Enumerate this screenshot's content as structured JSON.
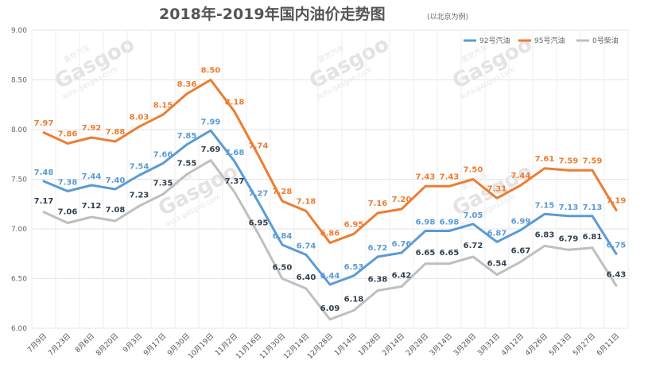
{
  "chart_data": {
    "type": "line",
    "title": "2018年-2019年国内油价走势图",
    "subtitle": "(以北京为例)",
    "categories": [
      "7月9日",
      "7月23日",
      "8月6日",
      "8月20日",
      "9月3日",
      "9月17日",
      "9月30日",
      "10月19日",
      "11月2日",
      "11月16日",
      "11月30日",
      "12月14日",
      "12月28日",
      "1月14日",
      "1月28日",
      "2月14日",
      "2月28日",
      "3月14日",
      "3月28日",
      "3月31日",
      "4月12日",
      "4月26日",
      "5月13日",
      "5月27日",
      "6月11日"
    ],
    "ylim": [
      6.0,
      9.0
    ],
    "yticks": [
      "6.00",
      "6.50",
      "7.00",
      "7.50",
      "8.00",
      "8.50",
      "9.00"
    ],
    "grid": true,
    "legend_position": "top-right",
    "series": [
      {
        "name": "92号汽油",
        "color": "#5b9bd5",
        "values": [
          7.48,
          7.38,
          7.44,
          7.4,
          7.54,
          7.66,
          7.85,
          7.99,
          7.68,
          7.27,
          6.84,
          6.74,
          6.44,
          6.53,
          6.72,
          6.76,
          6.98,
          6.98,
          7.05,
          6.87,
          6.99,
          7.15,
          7.13,
          7.13,
          6.75
        ]
      },
      {
        "name": "95号汽油",
        "color": "#ed7d31",
        "values": [
          7.97,
          7.86,
          7.92,
          7.88,
          8.03,
          8.15,
          8.36,
          8.5,
          8.18,
          7.74,
          7.28,
          7.18,
          6.86,
          6.95,
          7.16,
          7.2,
          7.43,
          7.43,
          7.5,
          7.31,
          7.44,
          7.61,
          7.59,
          7.59,
          7.19
        ]
      },
      {
        "name": "0号柴油",
        "color": "#bfbfbf",
        "label_color": "#333f4f",
        "values": [
          7.17,
          7.06,
          7.12,
          7.08,
          7.23,
          7.35,
          7.55,
          7.69,
          7.37,
          6.95,
          6.5,
          6.4,
          6.09,
          6.18,
          6.38,
          6.42,
          6.65,
          6.65,
          6.72,
          6.54,
          6.67,
          6.83,
          6.79,
          6.81,
          6.43
        ]
      }
    ],
    "watermark": {
      "brand": "Gasgoo",
      "cn": "盖世汽车",
      "url": "auto.gasgoo.com"
    }
  }
}
